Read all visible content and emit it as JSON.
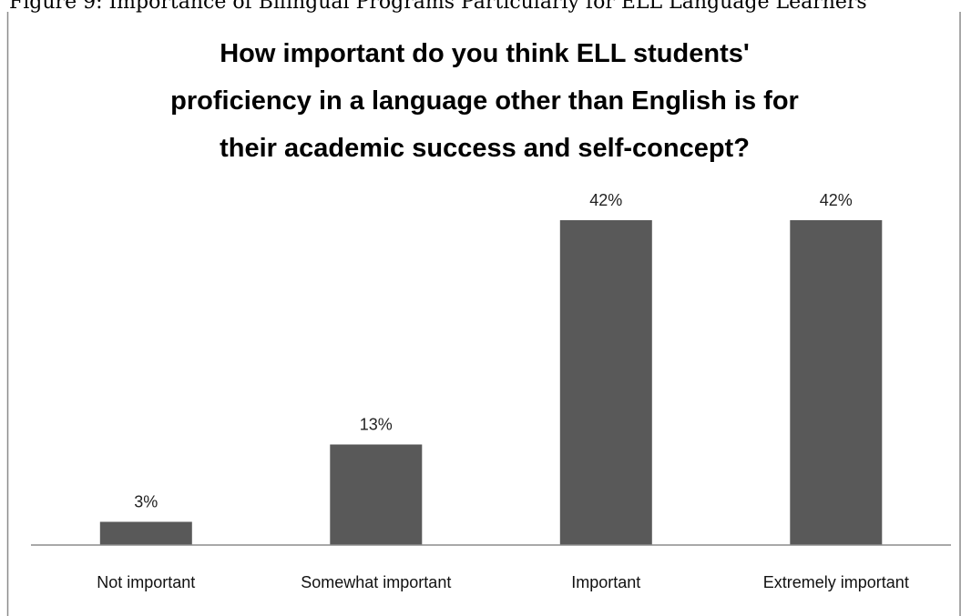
{
  "page_header_cut": "Figure 9: Importance of Bilingual Programs Particularly for ELL Language Learners",
  "chart_data": {
    "type": "bar",
    "title_lines": [
      "How important do you think ELL students'",
      "proficiency in a language other than English is for",
      "their academic success and self-concept?"
    ],
    "categories": [
      "Not important",
      "Somewhat important",
      "Important",
      "Extremely important"
    ],
    "values": [
      3,
      13,
      42,
      42
    ],
    "value_labels": [
      "3%",
      "13%",
      "42%",
      "42%"
    ],
    "unit": "%",
    "ylim": [
      0,
      42
    ],
    "gridlines": false,
    "legend": "none",
    "bar_color": "#595959"
  }
}
